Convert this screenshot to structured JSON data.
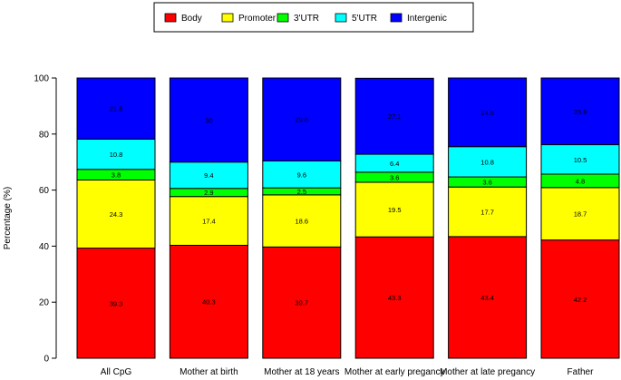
{
  "chart_data": {
    "type": "bar",
    "stacked": true,
    "title": "",
    "xlabel": "",
    "ylabel": "Percentage (%)",
    "ylim": [
      0,
      100
    ],
    "yticks": [
      0,
      20,
      40,
      60,
      80,
      100
    ],
    "grid": false,
    "legend_position": "top-center",
    "categories": [
      "All CpG",
      "Mother at birth",
      "Mother at 18 years",
      "Mother at early pregancy",
      "Mother at late pregancy",
      "Father"
    ],
    "series": [
      {
        "name": "Body",
        "color": "#ff0000",
        "values": [
          39.3,
          40.3,
          39.7,
          43.3,
          43.4,
          42.2
        ],
        "labels": [
          "39.3",
          "40.3",
          "39.7",
          "43.3",
          "43.4",
          "42.2"
        ]
      },
      {
        "name": "Promoter",
        "color": "#ffff00",
        "values": [
          24.3,
          17.4,
          18.6,
          19.5,
          17.7,
          18.7
        ],
        "labels": [
          "24.3",
          "17.4",
          "18.6",
          "19.5",
          "17.7",
          "18.7"
        ]
      },
      {
        "name": "3'UTR",
        "color": "#00ff00",
        "values": [
          3.8,
          2.9,
          2.5,
          3.6,
          3.6,
          4.8
        ],
        "labels": [
          "3.8",
          "2.9",
          "2.5",
          "3.6",
          "3.6",
          "4.8"
        ]
      },
      {
        "name": "5'UTR",
        "color": "#00ffff",
        "values": [
          10.8,
          9.4,
          9.6,
          6.4,
          10.8,
          10.5
        ],
        "labels": [
          "10.8",
          "9.4",
          "9.6",
          "6.4",
          "10.8",
          "10.5"
        ]
      },
      {
        "name": "Intergenic",
        "color": "#0000ff",
        "values": [
          21.8,
          30.0,
          29.6,
          27.1,
          24.5,
          23.8
        ],
        "labels": [
          "21.8",
          "30",
          "29.6",
          "27.1",
          "24.5",
          "23.8"
        ]
      }
    ]
  }
}
